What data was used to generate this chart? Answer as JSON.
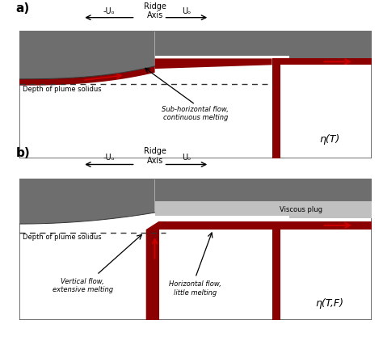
{
  "fig_width": 4.74,
  "fig_height": 4.17,
  "dpi": 100,
  "bg_color": "#ffffff",
  "dark_gray": "#6e6e6e",
  "light_gray": "#c0c0c0",
  "red_dark": "#8B0000",
  "box_edge": "#555555",
  "panel_a_label": "a)",
  "panel_b_label": "b)",
  "ridge_axis_label": "Ridge\nAxis",
  "minus_u_label": "-Uₒ",
  "plus_u_label": "Uₒ",
  "depth_solidus_a": "Depth of plume solidus",
  "depth_solidus_b": "Depth of plume solidus",
  "sub_horiz_label": "Sub-horizontal flow,\ncontinuous melting",
  "eta_T_label": "η(T)",
  "eta_TF_label": "η(T,F)",
  "viscous_plug_label": "Viscous plug",
  "vertical_flow_label": "Vertical flow,\nextensive melting",
  "horiz_flow_label": "Horizontal flow,\nlittle melting"
}
